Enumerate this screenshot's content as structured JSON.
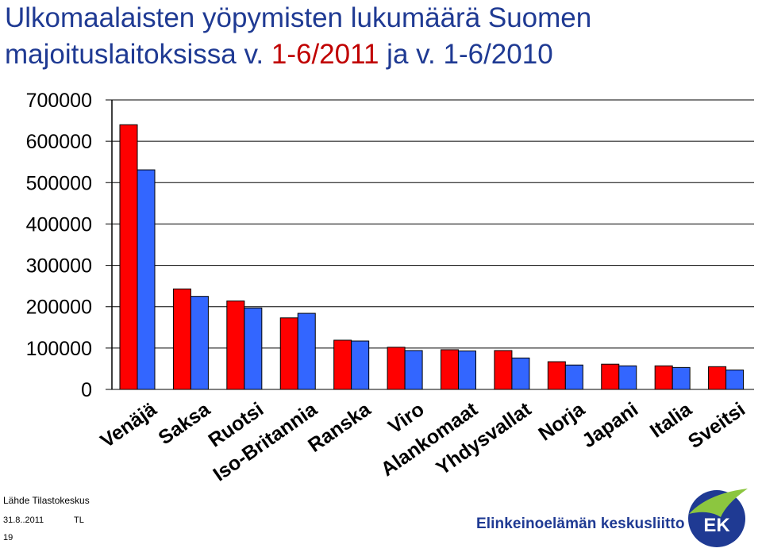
{
  "title": {
    "line1": "Ulkomaalaisten yöpymisten lukumäärä Suomen",
    "line2_a": "majoituslaitoksissa v. ",
    "line2_b": "1-6/2011",
    "line2_c": " ja v. ",
    "line2_d": "1-6/2010"
  },
  "chart_data": {
    "type": "bar",
    "categories": [
      "Venäjä",
      "Saksa",
      "Ruotsi",
      "Iso-Britannia",
      "Ranska",
      "Viro",
      "Alankomaat",
      "Yhdysvallat",
      "Norja",
      "Japani",
      "Italia",
      "Sveitsi"
    ],
    "series": [
      {
        "values": [
          640000,
          243000,
          214000,
          173000,
          119000,
          102000,
          96000,
          94000,
          67000,
          61000,
          57000,
          55000
        ]
      },
      {
        "values": [
          531000,
          225000,
          197000,
          184000,
          117000,
          94000,
          93000,
          76000,
          59000,
          57000,
          53000,
          47000
        ]
      }
    ],
    "ylim": [
      0,
      700000
    ],
    "yticks": [
      "0",
      "100000",
      "200000",
      "300000",
      "400000",
      "500000",
      "600000",
      "700000"
    ],
    "grid": true,
    "colors": {
      "series1": "#ff0000",
      "series2": "#3366ff"
    }
  },
  "footer": {
    "source": "Lähde Tilastokeskus",
    "date": "31.8..2011",
    "initials": "TL",
    "page": "19",
    "organization": "Elinkeinoelämän keskusliitto",
    "logo_text": "EK"
  }
}
